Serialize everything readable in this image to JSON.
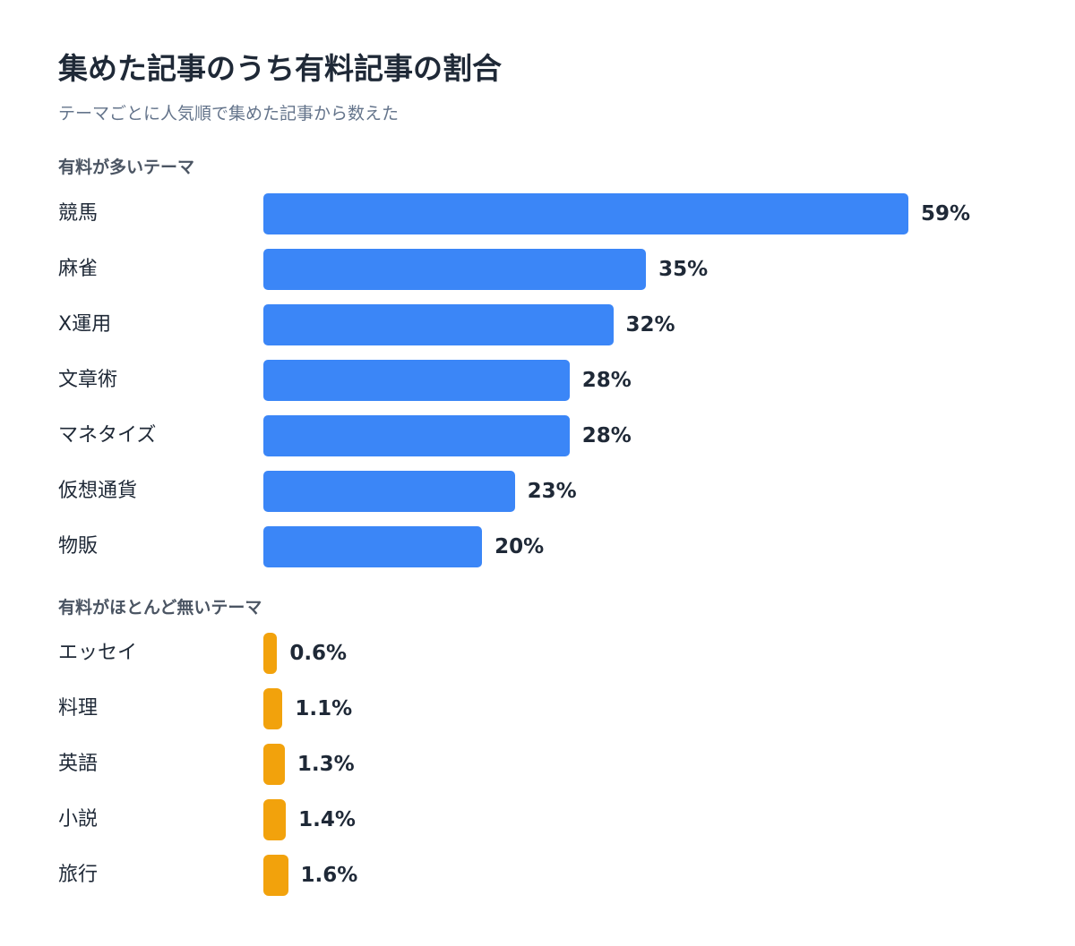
{
  "chart_data": {
    "type": "bar",
    "orientation": "horizontal",
    "title": "集めた記事のうち有料記事の割合",
    "subtitle": "テーマごとに人気順で集めた記事から数えた",
    "colors": {
      "high": "#3b86f7",
      "low": "#f2a20c"
    },
    "groups": [
      {
        "heading": "有料が多いテーマ",
        "color": "high",
        "categories": [
          "競馬",
          "麻雀",
          "X運用",
          "文章術",
          "マネタイズ",
          "仮想通貨",
          "物販"
        ],
        "values": [
          59,
          35,
          32,
          28,
          28,
          23,
          20
        ],
        "value_labels": [
          "59%",
          "35%",
          "32%",
          "28%",
          "28%",
          "23%",
          "20%"
        ]
      },
      {
        "heading": "有料がほとんど無いテーマ",
        "color": "low",
        "categories": [
          "エッセイ",
          "料理",
          "英語",
          "小説",
          "旅行"
        ],
        "values": [
          0.6,
          1.1,
          1.3,
          1.4,
          1.6
        ],
        "value_labels": [
          "0.6%",
          "1.1%",
          "1.3%",
          "1.4%",
          "1.6%"
        ]
      }
    ]
  }
}
